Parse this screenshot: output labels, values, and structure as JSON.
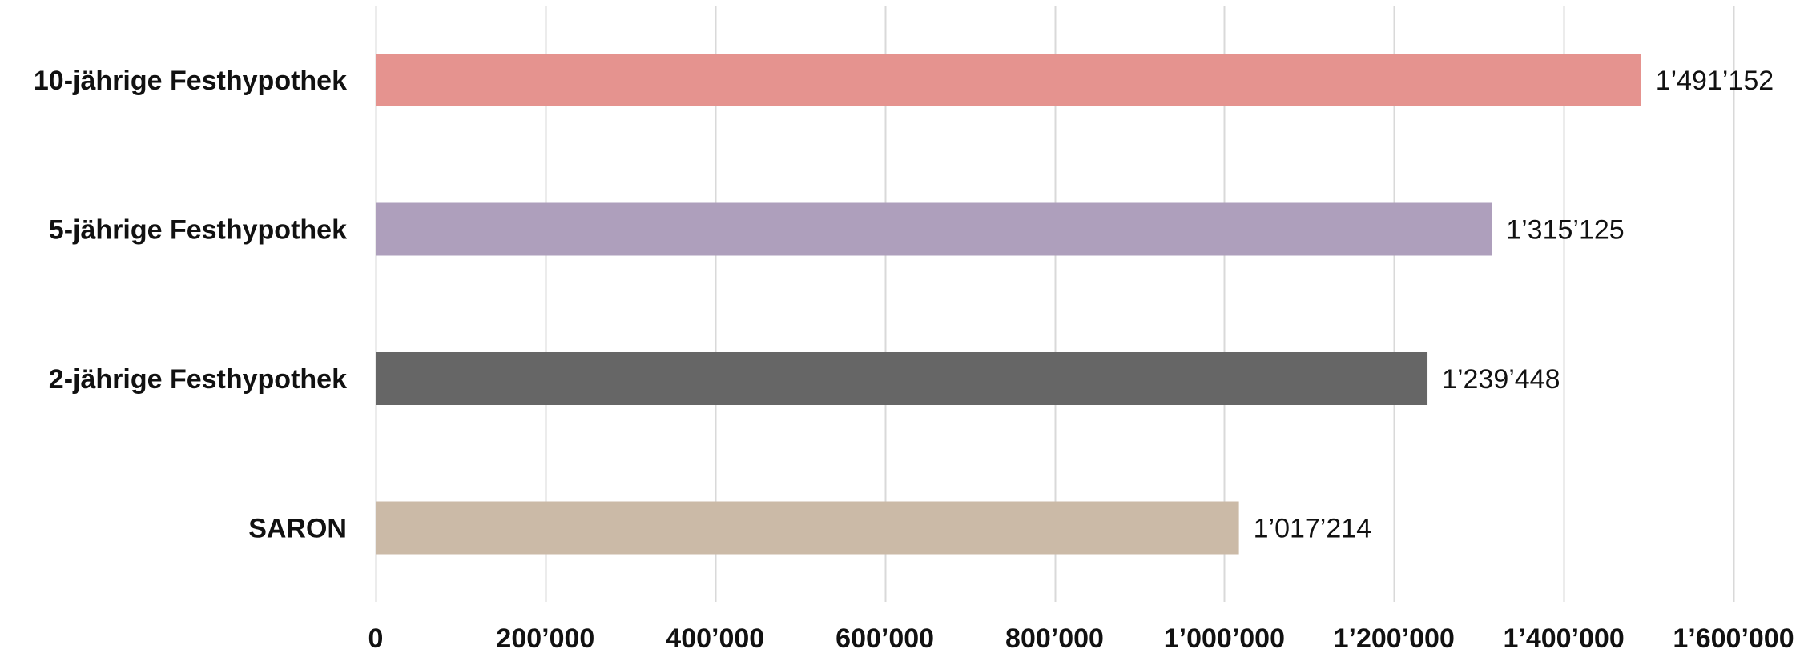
{
  "chart_data": {
    "type": "bar",
    "orientation": "horizontal",
    "title": "",
    "xlabel": "",
    "ylabel": "",
    "categories": [
      "10-jährige Festhypothek",
      "5-jährige Festhypothek",
      "2-jährige Festhypothek",
      "SARON"
    ],
    "values": [
      1491152,
      1315125,
      1239448,
      1017214
    ],
    "value_labels": [
      "1’491’152",
      "1’315’125",
      "1’239’448",
      "1’017’214"
    ],
    "colors": [
      "#e5938f",
      "#ae9fbc",
      "#666666",
      "#cbbaa7"
    ],
    "xlim": [
      0,
      1600000
    ],
    "xticks": [
      0,
      200000,
      400000,
      600000,
      800000,
      1000000,
      1200000,
      1400000,
      1600000
    ],
    "xtick_labels": [
      "0",
      "200’000",
      "400’000",
      "600’000",
      "800’000",
      "1’000’000",
      "1’200’000",
      "1’400’000",
      "1’600’000"
    ],
    "grid": true,
    "legend": "none"
  }
}
